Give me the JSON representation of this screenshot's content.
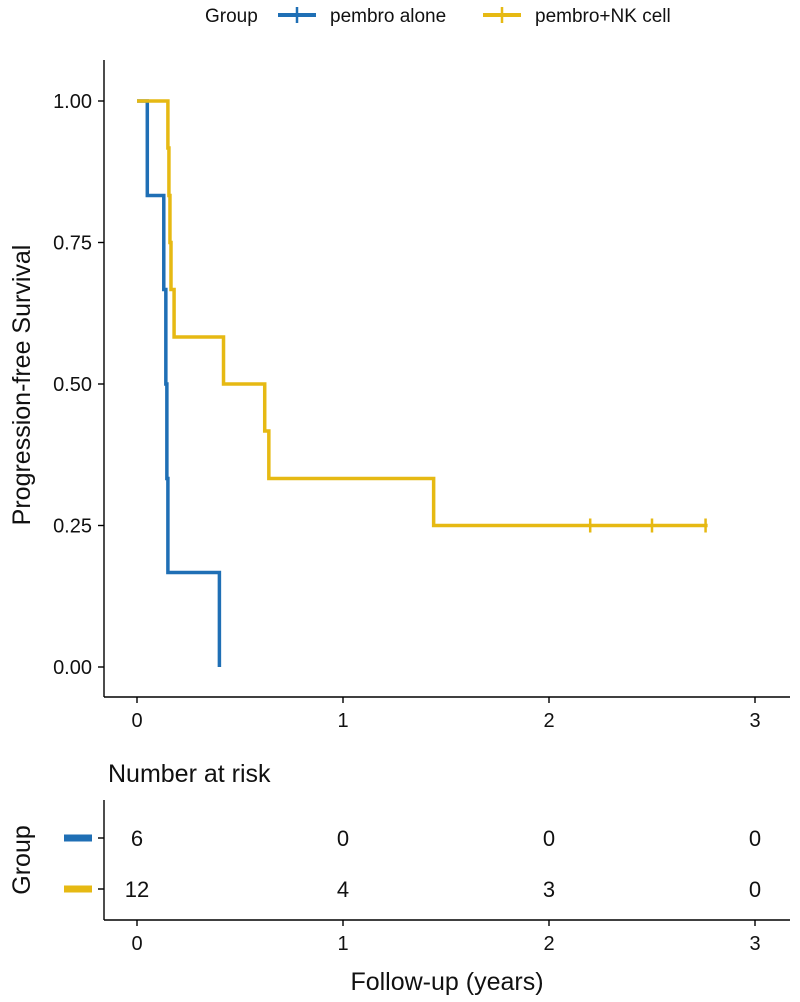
{
  "chart_data": [
    {
      "type": "line",
      "subtype": "kaplan-meier-step",
      "legend": {
        "title": "Group",
        "placement": "top",
        "entries": [
          "pembro alone",
          "pembro+NK cell"
        ]
      },
      "ylabel": "Progression-free Survival",
      "xlabel": "",
      "xlim": [
        0,
        3
      ],
      "ylim": [
        0,
        1
      ],
      "x_ticks": [
        0,
        1,
        2,
        3
      ],
      "x_tick_labels": [
        "0",
        "1",
        "2",
        "3"
      ],
      "y_ticks": [
        0,
        0.25,
        0.5,
        0.75,
        1
      ],
      "y_tick_labels": [
        "0.00",
        "0.25",
        "0.50",
        "0.75",
        "1.00"
      ],
      "grid": false,
      "series": [
        {
          "name": "pembro alone",
          "color": "#1f6fb5",
          "steps": [
            [
              0,
              1.0
            ],
            [
              0.05,
              0.833
            ],
            [
              0.13,
              0.667
            ],
            [
              0.14,
              0.5
            ],
            [
              0.145,
              0.333
            ],
            [
              0.15,
              0.167
            ],
            [
              0.4,
              0.0
            ]
          ],
          "end_x": 0.4,
          "censor_x": []
        },
        {
          "name": "pembro+NK cell",
          "color": "#e6b913",
          "steps": [
            [
              0,
              1.0
            ],
            [
              0.15,
              0.917
            ],
            [
              0.155,
              0.833
            ],
            [
              0.16,
              0.75
            ],
            [
              0.165,
              0.667
            ],
            [
              0.18,
              0.583
            ],
            [
              0.42,
              0.5
            ],
            [
              0.62,
              0.417
            ],
            [
              0.64,
              0.333
            ],
            [
              1.44,
              0.25
            ]
          ],
          "end_x": 2.77,
          "censor_x": [
            2.2,
            2.5,
            2.76
          ]
        }
      ]
    },
    {
      "type": "table",
      "title": "Number at risk",
      "ylabel": "Group",
      "xlabel": "Follow-up (years)",
      "xlim": [
        0,
        3
      ],
      "x_ticks": [
        0,
        1,
        2,
        3
      ],
      "x_tick_labels": [
        "0",
        "1",
        "2",
        "3"
      ],
      "rows": [
        {
          "group": "pembro alone",
          "color": "#1f6fb5",
          "values": [
            "6",
            "0",
            "0",
            "0"
          ]
        },
        {
          "group": "pembro+NK cell",
          "color": "#e6b913",
          "values": [
            "12",
            "4",
            "3",
            "0"
          ]
        }
      ]
    }
  ]
}
